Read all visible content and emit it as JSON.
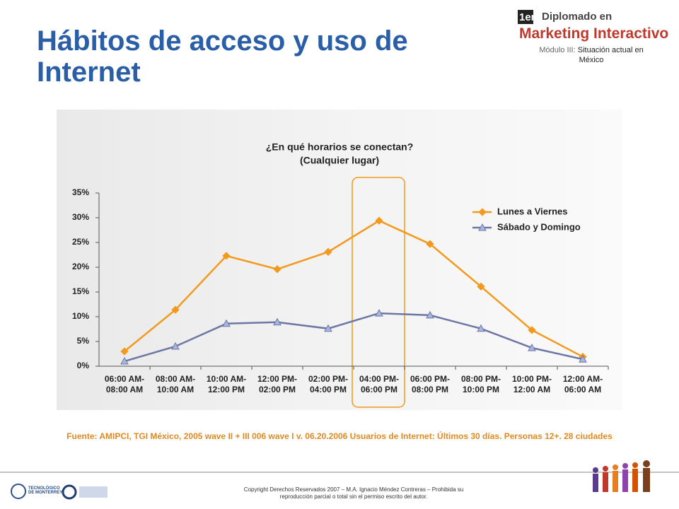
{
  "header": {
    "title": "Hábitos de acceso y uso de Internet",
    "badge": "1er",
    "program": "Diplomado en",
    "program_name": "Marketing Interactivo",
    "module_label": "Módulo III:",
    "module": "Situación actual en México"
  },
  "chart_data": {
    "type": "line",
    "title": "¿En qué horarios se conectan?",
    "subtitle": "(Cualquier lugar)",
    "categories": [
      "06:00 AM- 08:00 AM",
      "08:00 AM- 10:00 AM",
      "10:00 AM- 12:00 PM",
      "12:00 PM- 02:00 PM",
      "02:00 PM- 04:00 PM",
      "04:00 PM- 06:00 PM",
      "06:00 PM- 08:00 PM",
      "08:00 PM- 10:00 PM",
      "10:00 PM- 12:00 AM",
      "12:00 AM- 06:00 AM"
    ],
    "series": [
      {
        "name": "Lunes a Viernes",
        "color": "#f39a1e",
        "values": [
          3.0,
          11.4,
          22.3,
          19.6,
          23.1,
          29.4,
          24.7,
          16.1,
          7.3,
          1.9
        ]
      },
      {
        "name": "Sábado y Domingo",
        "color": "#6e76a6",
        "values": [
          1.0,
          4.0,
          8.6,
          8.9,
          7.6,
          10.7,
          10.3,
          7.6,
          3.7,
          1.4
        ]
      }
    ],
    "ylim": [
      0,
      35
    ],
    "yticks": [
      {
        "value": 0,
        "label": "0%"
      },
      {
        "value": 5,
        "label": "5%"
      },
      {
        "value": 10,
        "label": "10%"
      },
      {
        "value": 15,
        "label": "15%"
      },
      {
        "value": 20,
        "label": "20%"
      },
      {
        "value": 25,
        "label": "25%"
      },
      {
        "value": 30,
        "label": "30%"
      },
      {
        "value": 35,
        "label": "35%"
      }
    ],
    "legend": "upper right"
  },
  "source": "Fuente: AMIPCI, TGI México, 2005 wave II + III 006 wave I v. 06.20.2006 Usuarios de Internet: Últimos 30 días. Personas 12+. 28 ciudades",
  "footer": {
    "institution": "TECNOLÓGICO DE MONTERREY.",
    "copyright": "Copyright Derechos Reservados 2007 – M.A. Ignacio Méndez Contreras – Prohibida su reproducción parcial o total sin el permiso escrito del autor."
  }
}
